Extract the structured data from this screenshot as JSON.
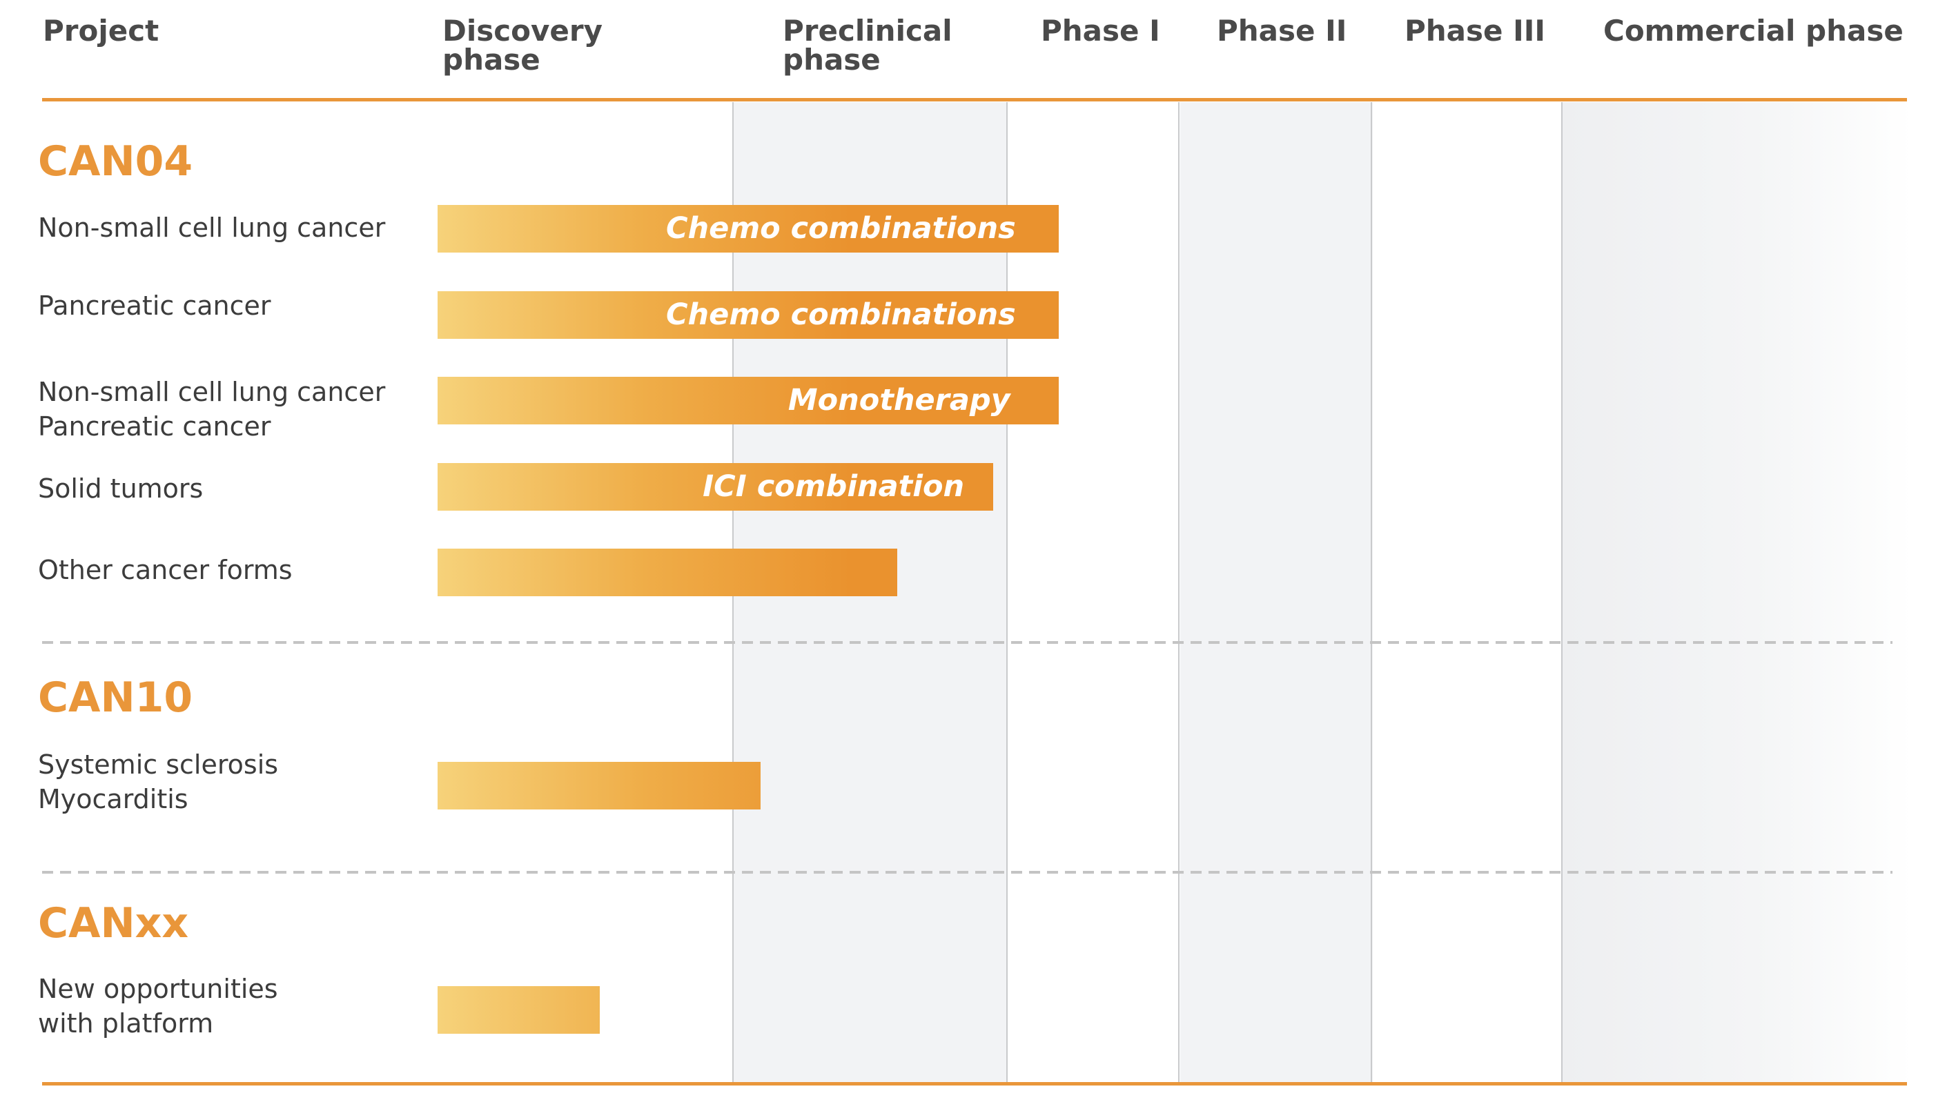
{
  "colors": {
    "accent": "#e9963a",
    "bar_start": "#f6d27a",
    "bar_end": "#ea922e",
    "grid": "#c9cacc",
    "shade": "#f2f3f5"
  },
  "headers": {
    "project": "Project",
    "discovery": "Discovery\nphase",
    "preclinical": "Preclinical\nphase",
    "phase1": "Phase I",
    "phase2": "Phase II",
    "phase3": "Phase III",
    "commercial": "Commercial phase"
  },
  "projects": [
    {
      "name": "CAN04",
      "rows": [
        {
          "indication": "Non-small cell lung cancer",
          "label": "Chemo combinations",
          "progress_phases": 2.3
        },
        {
          "indication": "Pancreatic cancer",
          "label": "Chemo combinations",
          "progress_phases": 2.3
        },
        {
          "indication": "Non-small cell lung cancer\nPancreatic cancer",
          "label": "Monotherapy",
          "progress_phases": 2.3
        },
        {
          "indication": "Solid tumors",
          "label": "ICI combination",
          "progress_phases": 1.95
        },
        {
          "indication": "Other cancer forms",
          "label": "",
          "progress_phases": 1.6
        }
      ]
    },
    {
      "name": "CAN10",
      "rows": [
        {
          "indication": "Systemic sclerosis\nMyocarditis",
          "label": "",
          "progress_phases": 1.1
        }
      ]
    },
    {
      "name": "CANxx",
      "rows": [
        {
          "indication": "New opportunities\nwith platform",
          "label": "",
          "progress_phases": 0.55
        }
      ]
    }
  ]
}
